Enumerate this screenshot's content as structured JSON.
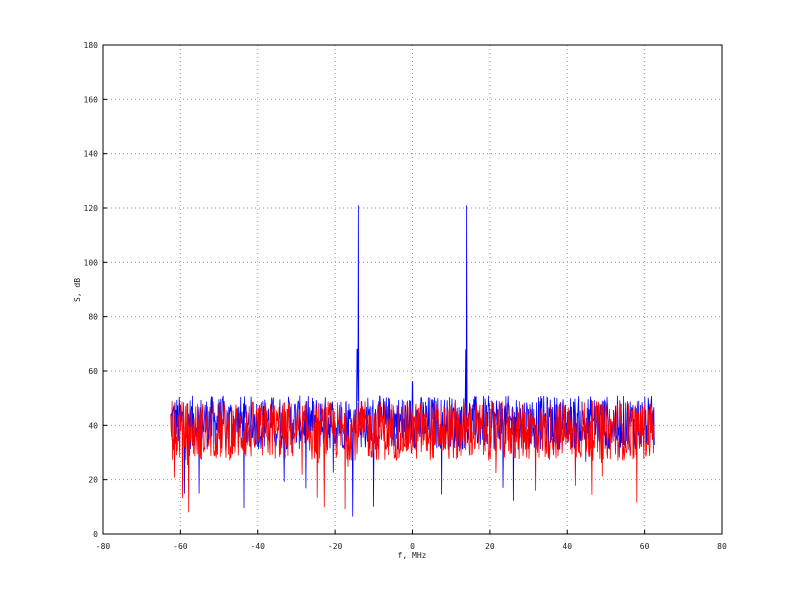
{
  "chart_data": {
    "type": "line",
    "title": "",
    "xlabel": "f, MHz",
    "ylabel": "S, dB",
    "xlim": [
      -80,
      80
    ],
    "ylim": [
      0,
      180
    ],
    "xticks": [
      -80,
      -60,
      -40,
      -20,
      0,
      20,
      40,
      60,
      80
    ],
    "yticks": [
      0,
      20,
      40,
      60,
      80,
      100,
      120,
      140,
      160,
      180
    ],
    "grid": true,
    "x_range_data": [
      -62.5,
      62.5
    ],
    "series": [
      {
        "color": "#0000ff",
        "noise_floor_db": {
          "typical_min": 30,
          "typical_max": 50,
          "mean": 41,
          "deep_dips_to": 6
        },
        "peaks": [
          {
            "x": -14,
            "y": 121
          },
          {
            "x": -14.3,
            "y": 68
          },
          {
            "x": 0,
            "y": 56
          },
          {
            "x": 14,
            "y": 121
          },
          {
            "x": 13.7,
            "y": 68
          }
        ]
      },
      {
        "color": "#ff0000",
        "noise_floor_db": {
          "typical_min": 25,
          "typical_max": 47,
          "mean": 38,
          "deep_dips_to": 6
        },
        "peaks": []
      }
    ]
  }
}
